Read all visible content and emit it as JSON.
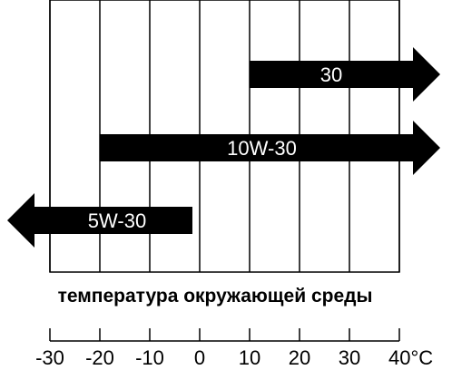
{
  "chart_data": {
    "type": "range-arrows",
    "title": "",
    "xlabel": "температура окружающей среды",
    "unit": "°C",
    "xlim": [
      -30,
      40
    ],
    "ticks": [
      -30,
      -20,
      -10,
      0,
      10,
      20,
      30,
      40
    ],
    "tick_labels": [
      "-30",
      "-20",
      "-10",
      "0",
      "10",
      "20",
      "30",
      "40°C"
    ],
    "grid": true,
    "series": [
      {
        "name": "30",
        "from": 10,
        "to": null,
        "open_end": "right"
      },
      {
        "name": "10W-30",
        "from": -20,
        "to": null,
        "open_end": "right"
      },
      {
        "name": "5W-30",
        "from": null,
        "to": 0,
        "open_end": "left"
      }
    ],
    "colors": {
      "arrow": "#000000",
      "label": "#ffffff",
      "background": "#ffffff"
    }
  }
}
